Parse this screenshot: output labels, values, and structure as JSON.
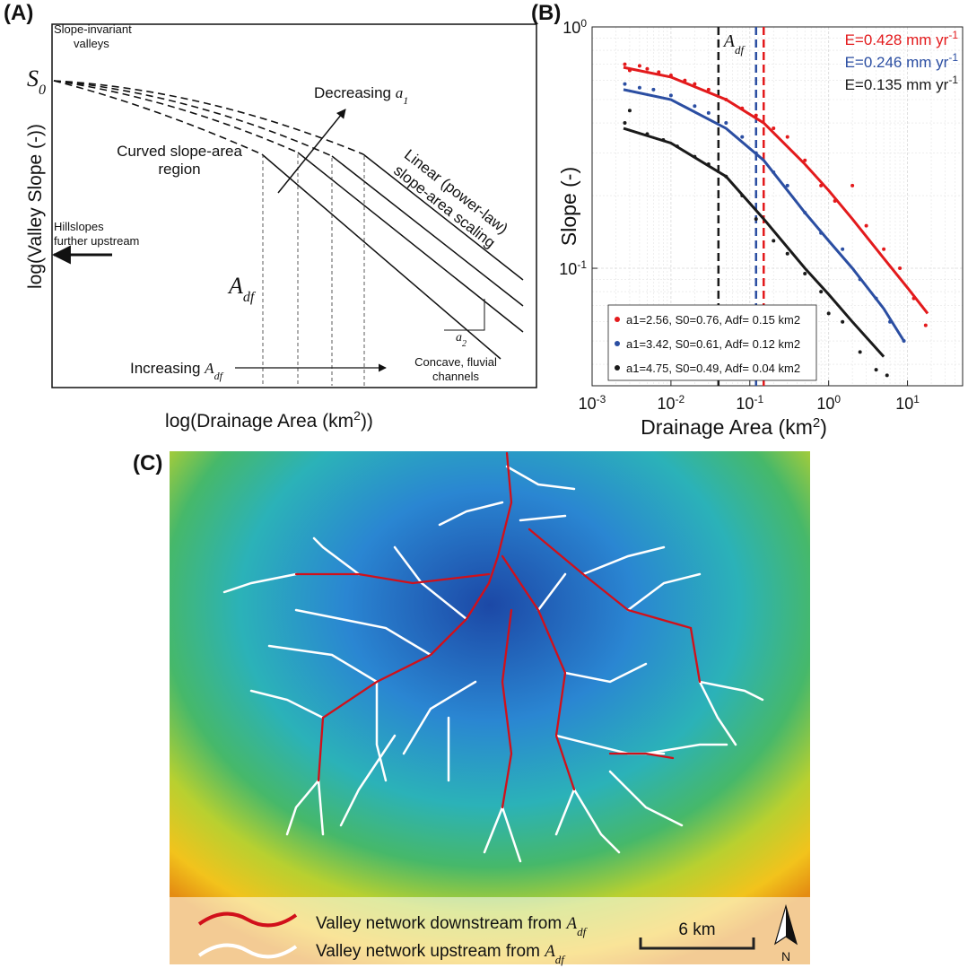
{
  "panel_a": {
    "label": "(A)",
    "invariant": [
      "Slope-invariant",
      "valleys"
    ],
    "s0": {
      "base": "S",
      "sub": "0"
    },
    "decreasing": {
      "text": "Decreasing ",
      "base": "a",
      "sub": "1"
    },
    "curved": [
      "Curved slope-area",
      "region"
    ],
    "linear": [
      "Linear (power-law)",
      "slope-area scaling"
    ],
    "hillslopes": [
      "Hillslopes",
      "further upstream"
    ],
    "adf": {
      "base": "A",
      "sub": "df"
    },
    "a2": {
      "base": "a",
      "sub": "2"
    },
    "increasing": {
      "text": "Increasing ",
      "base": "A",
      "sub": "df"
    },
    "concave": [
      "Concave, fluvial",
      "channels"
    ],
    "y_label": "log(Valley Slope (-))",
    "x_label": {
      "text": "log(Drainage Area (km",
      "sup": "2",
      "end": "))"
    }
  },
  "chart_data": {
    "type": "scatter",
    "panel_label": "(B)",
    "y_label": "Slope (-)",
    "x_label": {
      "text": "Drainage Area (km",
      "sup": "2",
      "end": ")"
    },
    "x_log": true,
    "y_log": true,
    "grid": true,
    "xlim": [
      0.001,
      50
    ],
    "ylim": [
      0.0326,
      1
    ],
    "xticks": [
      {
        "value": 0.001,
        "label": "10",
        "exp": "-3"
      },
      {
        "value": 0.01,
        "label": "10",
        "exp": "-2"
      },
      {
        "value": 0.1,
        "label": "10",
        "exp": "-1"
      },
      {
        "value": 1,
        "label": "10",
        "exp": "0"
      },
      {
        "value": 10,
        "label": "10",
        "exp": "1"
      }
    ],
    "yticks": [
      {
        "value": 0.1,
        "label": "10",
        "exp": "-1"
      },
      {
        "value": 1,
        "label": "10",
        "exp": "0"
      }
    ],
    "threshold_label": {
      "base": "A",
      "sub": "df"
    },
    "series": [
      {
        "name": "a1=2.56, S0=0.76, Adf= 0.15 km2",
        "color": "#e31a1c",
        "annotation": {
          "text": "E=0.428 mm yr",
          "sup": "-1"
        },
        "threshold": 0.15,
        "x": [
          0.0026,
          0.003,
          0.004,
          0.005,
          0.007,
          0.01,
          0.015,
          0.02,
          0.03,
          0.05,
          0.08,
          0.12,
          0.2,
          0.3,
          0.5,
          0.8,
          1.2,
          2,
          3,
          5,
          8,
          12,
          17
        ],
        "values": [
          0.7,
          0.66,
          0.69,
          0.67,
          0.65,
          0.63,
          0.6,
          0.58,
          0.55,
          0.5,
          0.46,
          0.43,
          0.38,
          0.35,
          0.28,
          0.22,
          0.19,
          0.22,
          0.15,
          0.12,
          0.1,
          0.075,
          0.058
        ],
        "fit_x": [
          0.0025,
          0.01,
          0.05,
          0.15,
          0.5,
          1,
          2,
          5,
          10,
          18
        ],
        "fit_values": [
          0.68,
          0.62,
          0.5,
          0.4,
          0.27,
          0.21,
          0.16,
          0.11,
          0.083,
          0.065
        ]
      },
      {
        "name": "a1=3.42, S0=0.61, Adf= 0.12 km2",
        "color": "#2b4ea2",
        "annotation": {
          "text": "E=0.246 mm yr",
          "sup": "-1"
        },
        "threshold": 0.12,
        "x": [
          0.0026,
          0.004,
          0.006,
          0.01,
          0.02,
          0.03,
          0.05,
          0.08,
          0.12,
          0.2,
          0.3,
          0.5,
          0.8,
          1.5,
          2.5,
          4,
          6,
          9
        ],
        "values": [
          0.58,
          0.56,
          0.55,
          0.52,
          0.47,
          0.44,
          0.4,
          0.35,
          0.3,
          0.25,
          0.22,
          0.17,
          0.14,
          0.12,
          0.09,
          0.075,
          0.06,
          0.05
        ],
        "fit_x": [
          0.0025,
          0.01,
          0.05,
          0.15,
          0.5,
          1,
          2,
          5,
          9
        ],
        "fit_values": [
          0.55,
          0.5,
          0.38,
          0.28,
          0.17,
          0.13,
          0.1,
          0.068,
          0.05
        ]
      },
      {
        "name": "a1=4.75, S0=0.49, Adf= 0.04 km2",
        "color": "#1a1a1a",
        "annotation": {
          "text": "E=0.135 mm yr",
          "sup": "-1"
        },
        "threshold": 0.04,
        "x": [
          0.0026,
          0.003,
          0.005,
          0.008,
          0.012,
          0.02,
          0.03,
          0.05,
          0.08,
          0.12,
          0.2,
          0.3,
          0.5,
          0.8,
          1,
          1.5,
          2.5,
          4,
          5.5
        ],
        "values": [
          0.4,
          0.45,
          0.36,
          0.34,
          0.32,
          0.29,
          0.27,
          0.24,
          0.2,
          0.16,
          0.13,
          0.115,
          0.095,
          0.08,
          0.065,
          0.06,
          0.045,
          0.038,
          0.036
        ],
        "fit_x": [
          0.0025,
          0.01,
          0.05,
          0.15,
          0.5,
          1,
          2,
          5
        ],
        "fit_values": [
          0.38,
          0.33,
          0.24,
          0.16,
          0.1,
          0.078,
          0.06,
          0.043
        ]
      }
    ]
  },
  "panel_c": {
    "label": "(C)",
    "legend": [
      {
        "text": "Valley network downstream from ",
        "base": "A",
        "sub": "df"
      },
      {
        "text": "Valley network upstream from ",
        "base": "A",
        "sub": "df"
      }
    ],
    "scale": "6 km",
    "north": "N"
  }
}
